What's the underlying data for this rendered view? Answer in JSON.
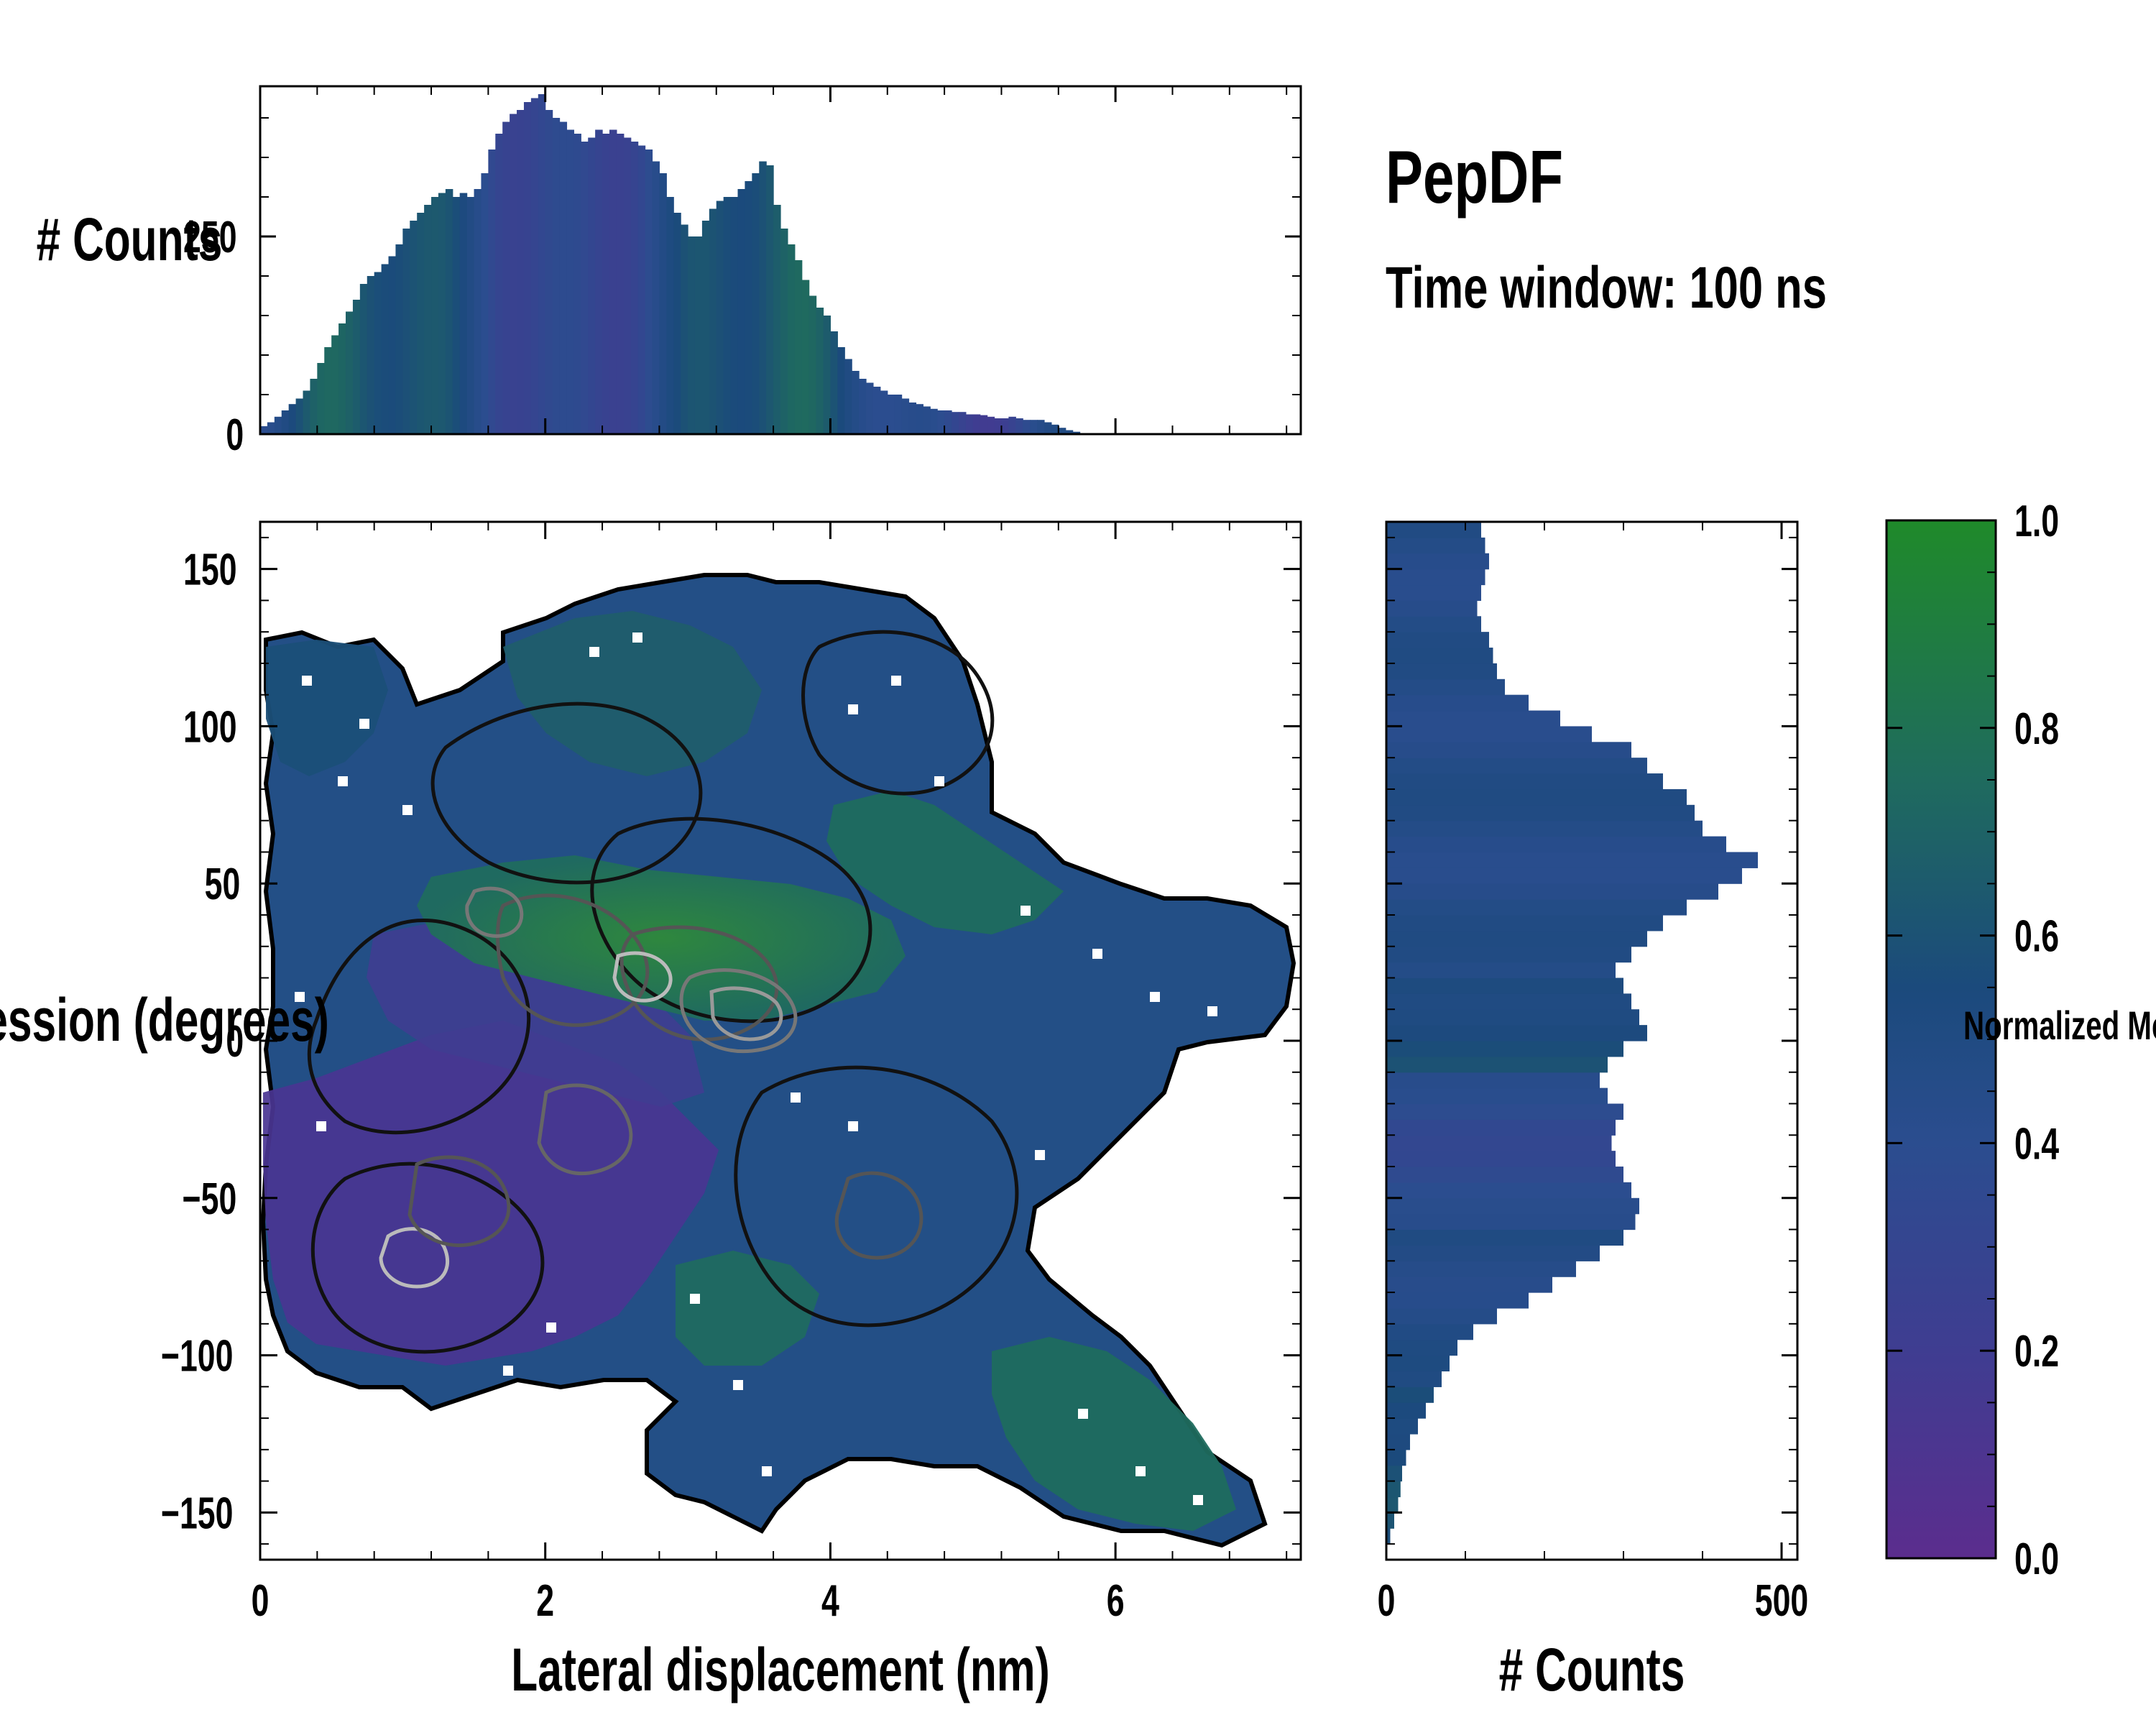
{
  "chart_data": {
    "type": "heatmap",
    "title": "PepDF",
    "subtitle": "Time window: 100 ns",
    "xlabel": "Lateral displacement (nm)",
    "ylabel": "Precession (degrees)",
    "xlim": [
      0,
      7.3
    ],
    "ylim": [
      -165,
      165
    ],
    "xticks": [
      0,
      2,
      4,
      6
    ],
    "xtick_labels": [
      "0",
      "2",
      "4",
      "6"
    ],
    "yticks": [
      150,
      100,
      50,
      0,
      -50,
      -100,
      -150
    ],
    "ytick_labels": [
      "150",
      "100",
      "50",
      "0",
      "−50",
      "−100",
      "−150"
    ],
    "colorbar": {
      "label": "Normalized Mean Time",
      "range": [
        0,
        1
      ],
      "ticks": [
        0.0,
        0.2,
        0.4,
        0.6,
        0.8,
        1.0
      ],
      "tick_labels": [
        "0.0",
        "0.2",
        "0.4",
        "0.6",
        "0.8",
        "1.0"
      ],
      "colors": [
        "#5b2d8e",
        "#3f3d91",
        "#2b4d8f",
        "#1b4a7c",
        "#1f6b5e",
        "#1f8a2a"
      ]
    },
    "top_histogram": {
      "ylabel": "# Counts",
      "yticks": [
        0,
        250
      ],
      "ytick_labels": [
        "0",
        "250"
      ],
      "ylim": [
        0,
        440
      ],
      "bin_width": 0.05,
      "counts": [
        10,
        15,
        22,
        30,
        38,
        45,
        55,
        70,
        90,
        110,
        125,
        140,
        155,
        170,
        190,
        200,
        205,
        215,
        225,
        240,
        260,
        270,
        280,
        290,
        300,
        305,
        310,
        300,
        305,
        300,
        310,
        330,
        360,
        380,
        395,
        405,
        410,
        420,
        425,
        430,
        410,
        400,
        395,
        385,
        380,
        370,
        375,
        385,
        380,
        385,
        380,
        375,
        370,
        365,
        360,
        345,
        330,
        300,
        280,
        265,
        250,
        250,
        270,
        285,
        295,
        300,
        300,
        310,
        320,
        330,
        345,
        340,
        290,
        260,
        240,
        220,
        195,
        175,
        160,
        150,
        130,
        110,
        95,
        80,
        70,
        65,
        60,
        55,
        50,
        50,
        45,
        40,
        38,
        35,
        32,
        30,
        30,
        28,
        28,
        25,
        25,
        24,
        22,
        20,
        20,
        22,
        20,
        18,
        18,
        18,
        15,
        12,
        8,
        5,
        3
      ]
    },
    "right_histogram": {
      "xlabel": "# Counts",
      "xticks": [
        0,
        500
      ],
      "xtick_labels": [
        "0",
        "500"
      ],
      "xlim": [
        0,
        520
      ],
      "bin_width": 5,
      "bin_start": -160,
      "counts": [
        5,
        10,
        15,
        18,
        20,
        25,
        30,
        40,
        50,
        60,
        70,
        80,
        90,
        110,
        140,
        180,
        210,
        240,
        270,
        300,
        315,
        320,
        310,
        300,
        290,
        285,
        290,
        300,
        280,
        270,
        280,
        300,
        330,
        320,
        310,
        300,
        290,
        310,
        330,
        350,
        380,
        420,
        450,
        470,
        430,
        400,
        390,
        380,
        350,
        330,
        310,
        260,
        220,
        180,
        150,
        140,
        135,
        130,
        120,
        115,
        120,
        125,
        130,
        125,
        120,
        115,
        130,
        140,
        160,
        170,
        175,
        160,
        150,
        140,
        125,
        110,
        95,
        80,
        65,
        55,
        45,
        30,
        20,
        10,
        5
      ]
    },
    "annotations": []
  }
}
